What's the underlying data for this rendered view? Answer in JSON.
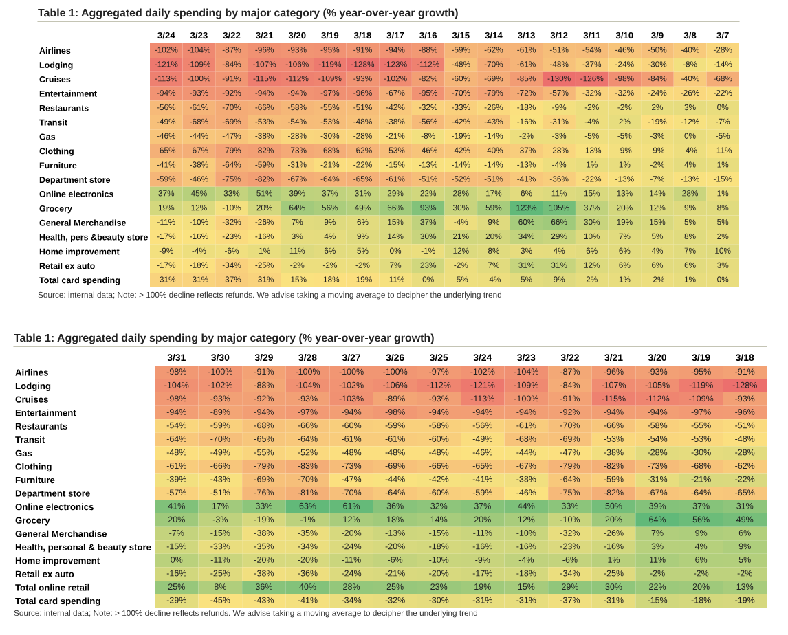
{
  "chart_data": [
    {
      "type": "heatmap",
      "title": "Table 1: Aggregated daily spending by major category (% year-over-year growth)",
      "categories": [
        "3/24",
        "3/23",
        "3/22",
        "3/21",
        "3/20",
        "3/19",
        "3/18",
        "3/17",
        "3/16",
        "3/15",
        "3/14",
        "3/13",
        "3/12",
        "3/11",
        "3/10",
        "3/9",
        "3/8",
        "3/7"
      ],
      "y_categories": [
        "Airlines",
        "Lodging",
        "Cruises",
        "Entertainment",
        "Restaurants",
        "Transit",
        "Gas",
        "Clothing",
        "Furniture",
        "Department store",
        "Online electronics",
        "Grocery",
        "General Merchandise",
        "Health, pers &beauty store",
        "Home improvement",
        "Retail ex auto",
        "Total card spending"
      ],
      "cells": [
        [
          -102,
          -104,
          -87,
          -96,
          -93,
          -95,
          -91,
          -94,
          -88,
          -59,
          -62,
          -61,
          -51,
          -54,
          -46,
          -50,
          -40,
          -28
        ],
        [
          -121,
          -109,
          -84,
          -107,
          -106,
          -119,
          -128,
          -123,
          -112,
          -48,
          -70,
          -61,
          -48,
          -37,
          -24,
          -30,
          -8,
          -14
        ],
        [
          -113,
          -100,
          -91,
          -115,
          -112,
          -109,
          -93,
          -102,
          -82,
          -60,
          -69,
          -85,
          -130,
          -126,
          -98,
          -84,
          -40,
          -68
        ],
        [
          -94,
          -93,
          -92,
          -94,
          -94,
          -97,
          -96,
          -67,
          -95,
          -70,
          -79,
          -72,
          -57,
          -32,
          -32,
          -24,
          -26,
          -22
        ],
        [
          -56,
          -61,
          -70,
          -66,
          -58,
          -55,
          -51,
          -42,
          -32,
          -33,
          -26,
          -18,
          -9,
          -2,
          -2,
          2,
          3,
          0
        ],
        [
          -49,
          -68,
          -69,
          -53,
          -54,
          -53,
          -48,
          -38,
          -56,
          -42,
          -43,
          -16,
          -31,
          -4,
          2,
          -19,
          -12,
          -7
        ],
        [
          -46,
          -44,
          -47,
          -38,
          -28,
          -30,
          -28,
          -21,
          -8,
          -19,
          -14,
          -2,
          -3,
          -5,
          -5,
          -3,
          0,
          -5
        ],
        [
          -65,
          -67,
          -79,
          -82,
          -73,
          -68,
          -62,
          -53,
          -46,
          -42,
          -40,
          -37,
          -28,
          -13,
          -9,
          -9,
          -4,
          -11
        ],
        [
          -41,
          -38,
          -64,
          -59,
          -31,
          -21,
          -22,
          -15,
          -13,
          -14,
          -14,
          -13,
          -4,
          1,
          1,
          -2,
          4,
          1
        ],
        [
          -59,
          -46,
          -75,
          -82,
          -67,
          -64,
          -65,
          -61,
          -51,
          -52,
          -51,
          -41,
          -36,
          -22,
          -13,
          -7,
          -13,
          -15
        ],
        [
          37,
          45,
          33,
          51,
          39,
          37,
          31,
          29,
          22,
          28,
          17,
          6,
          11,
          15,
          13,
          14,
          28,
          1
        ],
        [
          19,
          12,
          -10,
          20,
          64,
          56,
          49,
          66,
          93,
          30,
          59,
          123,
          105,
          37,
          20,
          12,
          9,
          8
        ],
        [
          -11,
          -10,
          -32,
          -26,
          7,
          9,
          6,
          15,
          37,
          -4,
          9,
          60,
          66,
          30,
          19,
          15,
          5,
          5
        ],
        [
          -17,
          -16,
          -23,
          -16,
          3,
          4,
          9,
          14,
          30,
          21,
          20,
          34,
          29,
          10,
          7,
          5,
          8,
          2
        ],
        [
          -9,
          -4,
          -6,
          1,
          11,
          6,
          5,
          0,
          -1,
          12,
          8,
          3,
          4,
          6,
          6,
          4,
          7,
          10
        ],
        [
          -17,
          -18,
          -34,
          -25,
          -2,
          -2,
          -2,
          7,
          23,
          -2,
          7,
          31,
          31,
          12,
          6,
          6,
          6,
          3
        ],
        [
          -31,
          -31,
          -37,
          -31,
          -15,
          -18,
          -19,
          -11,
          0,
          -5,
          -4,
          5,
          9,
          2,
          1,
          -2,
          1,
          0
        ]
      ],
      "cell_labels": [
        [
          "-102%",
          "-104%",
          "-87%",
          "-96%",
          "-93%",
          "-95%",
          "-91%",
          "-94%",
          "-88%",
          "-59%",
          "-62%",
          "-61%",
          "-51%",
          "-54%",
          "-46%",
          "-50%",
          "-40%",
          "-28%"
        ],
        [
          "-121%",
          "-109%",
          "-84%",
          "-107%",
          "-106%",
          "-119%",
          "-128%",
          "-123%",
          "-112%",
          "-48%",
          "-70%",
          "-61%",
          "-48%",
          "-37%",
          "-24%",
          "-30%",
          "-8%",
          "-14%"
        ],
        [
          "-113%",
          "-100%",
          "-91%",
          "-115%",
          "-112%",
          "-109%",
          "-93%",
          "-102%",
          "-82%",
          "-60%",
          "-69%",
          "-85%",
          "-130%",
          "-126%",
          "-98%",
          "-84%",
          "-40%",
          "-68%"
        ],
        [
          "-94%",
          "-93%",
          "-92%",
          "-94%",
          "-94%",
          "-97%",
          "-96%",
          "-67%",
          "-95%",
          "-70%",
          "-79%",
          "-72%",
          "-57%",
          "-32%",
          "-32%",
          "-24%",
          "-26%",
          "-22%"
        ],
        [
          "-56%",
          "-61%",
          "-70%",
          "-66%",
          "-58%",
          "-55%",
          "-51%",
          "-42%",
          "-32%",
          "-33%",
          "-26%",
          "-18%",
          "-9%",
          "-2%",
          "-2%",
          "2%",
          "3%",
          "0%"
        ],
        [
          "-49%",
          "-68%",
          "-69%",
          "-53%",
          "-54%",
          "-53%",
          "-48%",
          "-38%",
          "-56%",
          "-42%",
          "-43%",
          "-16%",
          "-31%",
          "-4%",
          "2%",
          "-19%",
          "-12%",
          "-7%"
        ],
        [
          "-46%",
          "-44%",
          "-47%",
          "-38%",
          "-28%",
          "-30%",
          "-28%",
          "-21%",
          "-8%",
          "-19%",
          "-14%",
          "-2%",
          "-3%",
          "-5%",
          "-5%",
          "-3%",
          "0%",
          "-5%"
        ],
        [
          "-65%",
          "-67%",
          "-79%",
          "-82%",
          "-73%",
          "-68%",
          "-62%",
          "-53%",
          "-46%",
          "-42%",
          "-40%",
          "-37%",
          "-28%",
          "-13%",
          "-9%",
          "-9%",
          "-4%",
          "-11%"
        ],
        [
          "-41%",
          "-38%",
          "-64%",
          "-59%",
          "-31%",
          "-21%",
          "-22%",
          "-15%",
          "-13%",
          "-14%",
          "-14%",
          "-13%",
          "-4%",
          "1%",
          "1%",
          "-2%",
          "4%",
          "1%"
        ],
        [
          "-59%",
          "-46%",
          "-75%",
          "-82%",
          "-67%",
          "-64%",
          "-65%",
          "-61%",
          "-51%",
          "-52%",
          "-51%",
          "-41%",
          "-36%",
          "-22%",
          "-13%",
          "-7%",
          "-13%",
          "-15%"
        ],
        [
          "37%",
          "45%",
          "33%",
          "51%",
          "39%",
          "37%",
          "31%",
          "29%",
          "22%",
          "28%",
          "17%",
          "6%",
          "11%",
          "15%",
          "13%",
          "14%",
          "28%",
          "1%"
        ],
        [
          "19%",
          "12%",
          "-10%",
          "20%",
          "64%",
          "56%",
          "49%",
          "66%",
          "93%",
          "30%",
          "59%",
          "123%",
          "105%",
          "37%",
          "20%",
          "12%",
          "9%",
          "8%"
        ],
        [
          "-11%",
          "-10%",
          "-32%",
          "-26%",
          "7%",
          "9%",
          "6%",
          "15%",
          "37%",
          "-4%",
          "9%",
          "60%",
          "66%",
          "30%",
          "19%",
          "15%",
          "5%",
          "5%"
        ],
        [
          "-17%",
          "-16%",
          "-23%",
          "-16%",
          "3%",
          "4%",
          "9%",
          "14%",
          "30%",
          "21%",
          "20%",
          "34%",
          "29%",
          "10%",
          "7%",
          "5%",
          "8%",
          "2%"
        ],
        [
          "-9%",
          "-4%",
          "-6%",
          "1%",
          "11%",
          "6%",
          "5%",
          "0%",
          "-1%",
          "12%",
          "8%",
          "3%",
          "4%",
          "6%",
          "6%",
          "4%",
          "7%",
          "10%"
        ],
        [
          "-17%",
          "-18%",
          "-34%",
          "-25%",
          "-2%",
          "-2%",
          "-2%",
          "7%",
          "23%",
          "-2%",
          "7%",
          "31%",
          "31%",
          "12%",
          "6%",
          "6%",
          "6%",
          "3%"
        ],
        [
          "-31%",
          "-31%",
          "-37%",
          "-31%",
          "-15%",
          "-18%",
          "-19%",
          "-11%",
          "0%",
          "-5%",
          "-4%",
          "5%",
          "9%",
          "2%",
          "1%",
          "-2%",
          "1%",
          "0%"
        ]
      ],
      "annotations": [
        "Source: internal data; Note: > 100% decline reflects refunds. We advise taking a moving average to decipher the underlying trend"
      ]
    },
    {
      "type": "heatmap",
      "title": "Table 1: Aggregated daily spending by major category (% year-over-year growth)",
      "categories": [
        "3/31",
        "3/30",
        "3/29",
        "3/28",
        "3/27",
        "3/26",
        "3/25",
        "3/24",
        "3/23",
        "3/22",
        "3/21",
        "3/20",
        "3/19",
        "3/18"
      ],
      "y_categories": [
        "Airlines",
        "Lodging",
        "Cruises",
        "Entertainment",
        "Restaurants",
        "Transit",
        "Gas",
        "Clothing",
        "Furniture",
        "Department store",
        "Online electronics",
        "Grocery",
        "General Merchandise",
        "Health, personal & beauty store",
        "Home improvement",
        "Retail ex auto",
        "Total online retail",
        "Total card spending"
      ],
      "cells": [
        [
          -98,
          -100,
          -91,
          -100,
          -100,
          -100,
          -97,
          -102,
          -104,
          -87,
          -96,
          -93,
          -95,
          -91
        ],
        [
          -104,
          -102,
          -88,
          -104,
          -102,
          -106,
          -112,
          -121,
          -109,
          -84,
          -107,
          -105,
          -119,
          -128
        ],
        [
          -98,
          -93,
          -92,
          -93,
          -103,
          -89,
          -93,
          -113,
          -100,
          -91,
          -115,
          -112,
          -109,
          -93
        ],
        [
          -94,
          -89,
          -94,
          -97,
          -94,
          -98,
          -94,
          -94,
          -94,
          -92,
          -94,
          -94,
          -97,
          -96
        ],
        [
          -54,
          -59,
          -68,
          -66,
          -60,
          -59,
          -58,
          -56,
          -61,
          -70,
          -66,
          -58,
          -55,
          -51
        ],
        [
          -64,
          -70,
          -65,
          -64,
          -61,
          -61,
          -60,
          -49,
          -68,
          -69,
          -53,
          -54,
          -53,
          -48
        ],
        [
          -48,
          -49,
          -55,
          -52,
          -48,
          -48,
          -48,
          -46,
          -44,
          -47,
          -38,
          -28,
          -30,
          -28
        ],
        [
          -61,
          -66,
          -79,
          -83,
          -73,
          -69,
          -66,
          -65,
          -67,
          -79,
          -82,
          -73,
          -68,
          -62
        ],
        [
          -39,
          -43,
          -69,
          -70,
          -47,
          -44,
          -42,
          -41,
          -38,
          -64,
          -59,
          -31,
          -21,
          -22
        ],
        [
          -57,
          -51,
          -76,
          -81,
          -70,
          -64,
          -60,
          -59,
          -46,
          -75,
          -82,
          -67,
          -64,
          -65
        ],
        [
          41,
          17,
          33,
          63,
          61,
          36,
          32,
          37,
          44,
          33,
          50,
          39,
          37,
          31
        ],
        [
          20,
          -3,
          -19,
          -1,
          12,
          18,
          14,
          20,
          12,
          -10,
          20,
          64,
          56,
          49
        ],
        [
          -7,
          -15,
          -38,
          -35,
          -20,
          -13,
          -15,
          -11,
          -10,
          -32,
          -26,
          7,
          9,
          6
        ],
        [
          -15,
          -33,
          -35,
          -34,
          -24,
          -20,
          -18,
          -16,
          -16,
          -23,
          -16,
          3,
          4,
          9
        ],
        [
          0,
          -11,
          -20,
          -20,
          -11,
          -6,
          -10,
          -9,
          -4,
          -6,
          1,
          11,
          6,
          5
        ],
        [
          -16,
          -25,
          -38,
          -36,
          -24,
          -21,
          -20,
          -17,
          -18,
          -34,
          -25,
          -2,
          -2,
          -2
        ],
        [
          25,
          8,
          36,
          40,
          28,
          25,
          23,
          19,
          15,
          29,
          30,
          22,
          20,
          13
        ],
        [
          -29,
          -45,
          -43,
          -41,
          -34,
          -32,
          -30,
          -31,
          -31,
          -37,
          -31,
          -15,
          -18,
          -19
        ]
      ],
      "cell_labels": [
        [
          "-98%",
          "-100%",
          "-91%",
          "-100%",
          "-100%",
          "-100%",
          "-97%",
          "-102%",
          "-104%",
          "-87%",
          "-96%",
          "-93%",
          "-95%",
          "-91%"
        ],
        [
          "-104%",
          "-102%",
          "-88%",
          "-104%",
          "-102%",
          "-106%",
          "-112%",
          "-121%",
          "-109%",
          "-84%",
          "-107%",
          "-105%",
          "-119%",
          "-128%"
        ],
        [
          "-98%",
          "-93%",
          "-92%",
          "-93%",
          "-103%",
          "-89%",
          "-93%",
          "-113%",
          "-100%",
          "-91%",
          "-115%",
          "-112%",
          "-109%",
          "-93%"
        ],
        [
          "-94%",
          "-89%",
          "-94%",
          "-97%",
          "-94%",
          "-98%",
          "-94%",
          "-94%",
          "-94%",
          "-92%",
          "-94%",
          "-94%",
          "-97%",
          "-96%"
        ],
        [
          "-54%",
          "-59%",
          "-68%",
          "-66%",
          "-60%",
          "-59%",
          "-58%",
          "-56%",
          "-61%",
          "-70%",
          "-66%",
          "-58%",
          "-55%",
          "-51%"
        ],
        [
          "-64%",
          "-70%",
          "-65%",
          "-64%",
          "-61%",
          "-61%",
          "-60%",
          "-49%",
          "-68%",
          "-69%",
          "-53%",
          "-54%",
          "-53%",
          "-48%"
        ],
        [
          "-48%",
          "-49%",
          "-55%",
          "-52%",
          "-48%",
          "-48%",
          "-48%",
          "-46%",
          "-44%",
          "-47%",
          "-38%",
          "-28%",
          "-30%",
          "-28%"
        ],
        [
          "-61%",
          "-66%",
          "-79%",
          "-83%",
          "-73%",
          "-69%",
          "-66%",
          "-65%",
          "-67%",
          "-79%",
          "-82%",
          "-73%",
          "-68%",
          "-62%"
        ],
        [
          "-39%",
          "-43%",
          "-69%",
          "-70%",
          "-47%",
          "-44%",
          "-42%",
          "-41%",
          "-38%",
          "-64%",
          "-59%",
          "-31%",
          "-21%",
          "-22%"
        ],
        [
          "-57%",
          "-51%",
          "-76%",
          "-81%",
          "-70%",
          "-64%",
          "-60%",
          "-59%",
          "-46%",
          "-75%",
          "-82%",
          "-67%",
          "-64%",
          "-65%"
        ],
        [
          "41%",
          "17%",
          "33%",
          "63%",
          "61%",
          "36%",
          "32%",
          "37%",
          "44%",
          "33%",
          "50%",
          "39%",
          "37%",
          "31%"
        ],
        [
          "20%",
          "-3%",
          "-19%",
          "-1%",
          "12%",
          "18%",
          "14%",
          "20%",
          "12%",
          "-10%",
          "20%",
          "64%",
          "56%",
          "49%"
        ],
        [
          "-7%",
          "-15%",
          "-38%",
          "-35%",
          "-20%",
          "-13%",
          "-15%",
          "-11%",
          "-10%",
          "-32%",
          "-26%",
          "7%",
          "9%",
          "6%"
        ],
        [
          "-15%",
          "-33%",
          "-35%",
          "-34%",
          "-24%",
          "-20%",
          "-18%",
          "-16%",
          "-16%",
          "-23%",
          "-16%",
          "3%",
          "4%",
          "9%"
        ],
        [
          "0%",
          "-11%",
          "-20%",
          "-20%",
          "-11%",
          "-6%",
          "-10%",
          "-9%",
          "-4%",
          "-6%",
          "1%",
          "11%",
          "6%",
          "5%"
        ],
        [
          "-16%",
          "-25%",
          "-38%",
          "-36%",
          "-24%",
          "-21%",
          "-20%",
          "-17%",
          "-18%",
          "-34%",
          "-25%",
          "-2%",
          "-2%",
          "-2%"
        ],
        [
          "25%",
          "8%",
          "36%",
          "40%",
          "28%",
          "25%",
          "23%",
          "19%",
          "15%",
          "29%",
          "30%",
          "22%",
          "20%",
          "13%"
        ],
        [
          "-29%",
          "-45%",
          "-43%",
          "-41%",
          "-34%",
          "-32%",
          "-30%",
          "-31%",
          "-31%",
          "-37%",
          "-31%",
          "-15%",
          "-18%",
          "-19%"
        ]
      ],
      "annotations": [
        "Source: internal data; Note: > 100% decline reflects refunds. We advise taking a moving average to decipher the underlying trend"
      ]
    }
  ]
}
